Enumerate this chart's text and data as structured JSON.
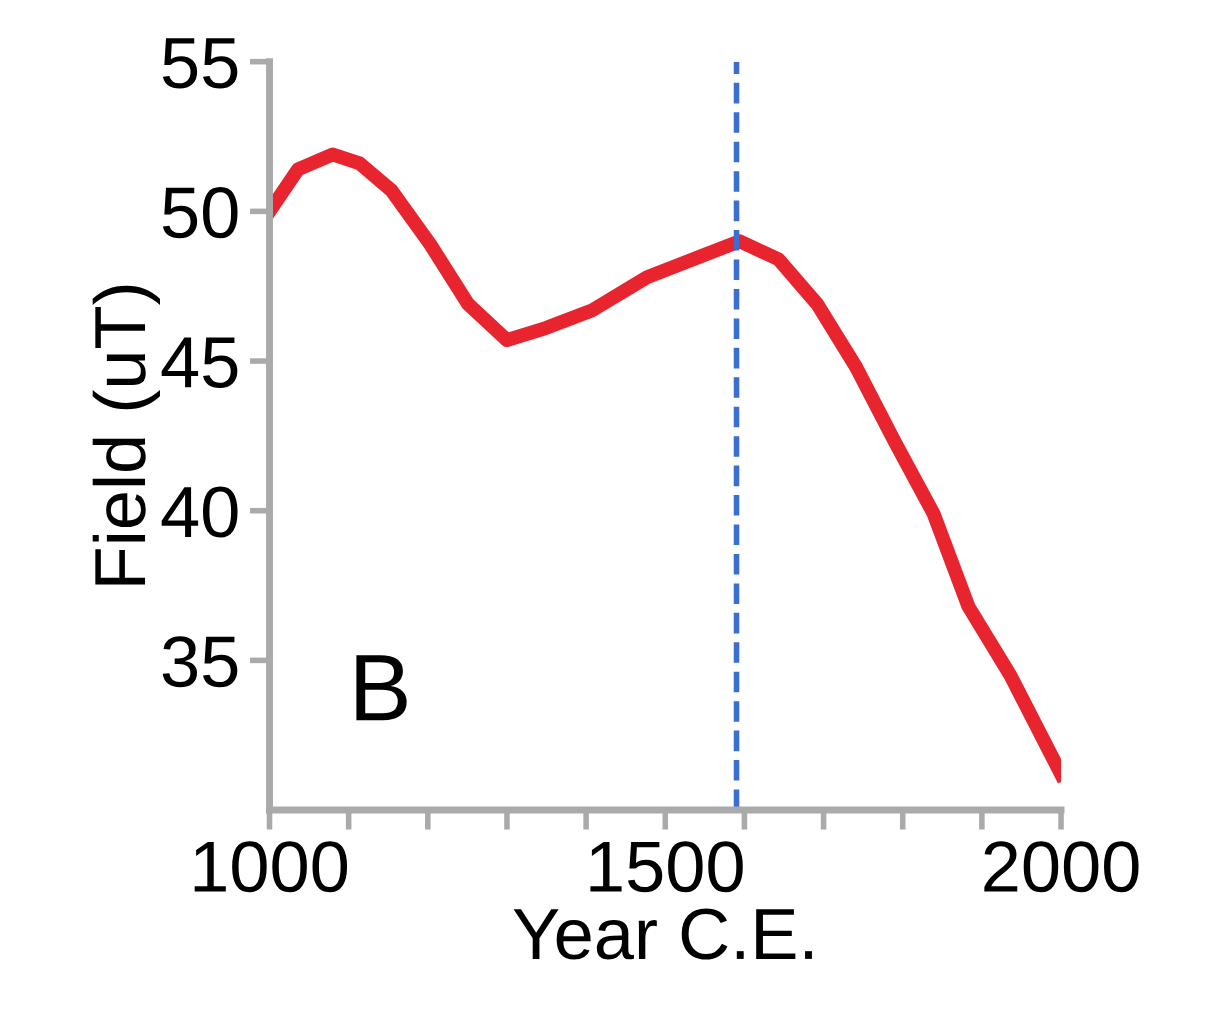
{
  "chart_data": {
    "type": "line",
    "xlabel": "Year C.E.",
    "ylabel": "Field (uT)",
    "x": [
      1000,
      1036,
      1080,
      1114,
      1154,
      1203,
      1251,
      1300,
      1349,
      1408,
      1477,
      1545,
      1594,
      1643,
      1692,
      1741,
      1790,
      1839,
      1883,
      1936,
      2000
    ],
    "series": [
      {
        "color": "#e8242f",
        "values": [
          50.0,
          51.4,
          51.9,
          51.6,
          50.7,
          48.9,
          46.9,
          45.7,
          46.1,
          46.7,
          47.8,
          48.5,
          49.0,
          48.4,
          46.9,
          44.8,
          42.3,
          39.9,
          36.8,
          34.5,
          31.2
        ]
      }
    ],
    "xlim": [
      1000,
      2000
    ],
    "ylim": [
      30,
      55
    ],
    "xticks": [
      1000,
      {
        "value": 1100,
        "label": null
      },
      {
        "value": 1200,
        "label": null
      },
      {
        "value": 1300,
        "label": null
      },
      {
        "value": 1400,
        "label": null
      },
      1500,
      {
        "value": 1600,
        "label": null
      },
      {
        "value": 1700,
        "label": null
      },
      {
        "value": 1800,
        "label": null
      },
      {
        "value": 1900,
        "label": null
      },
      2000
    ],
    "yticks": [
      35,
      40,
      45,
      50,
      55
    ],
    "ref_lines": [
      {
        "axis": "x",
        "value": 1590,
        "color": "#3a6fd0",
        "line_style": "dashed"
      }
    ],
    "annotations": [
      "B"
    ],
    "grid": false,
    "legend": false,
    "marker": "none",
    "line_style": "solid"
  }
}
